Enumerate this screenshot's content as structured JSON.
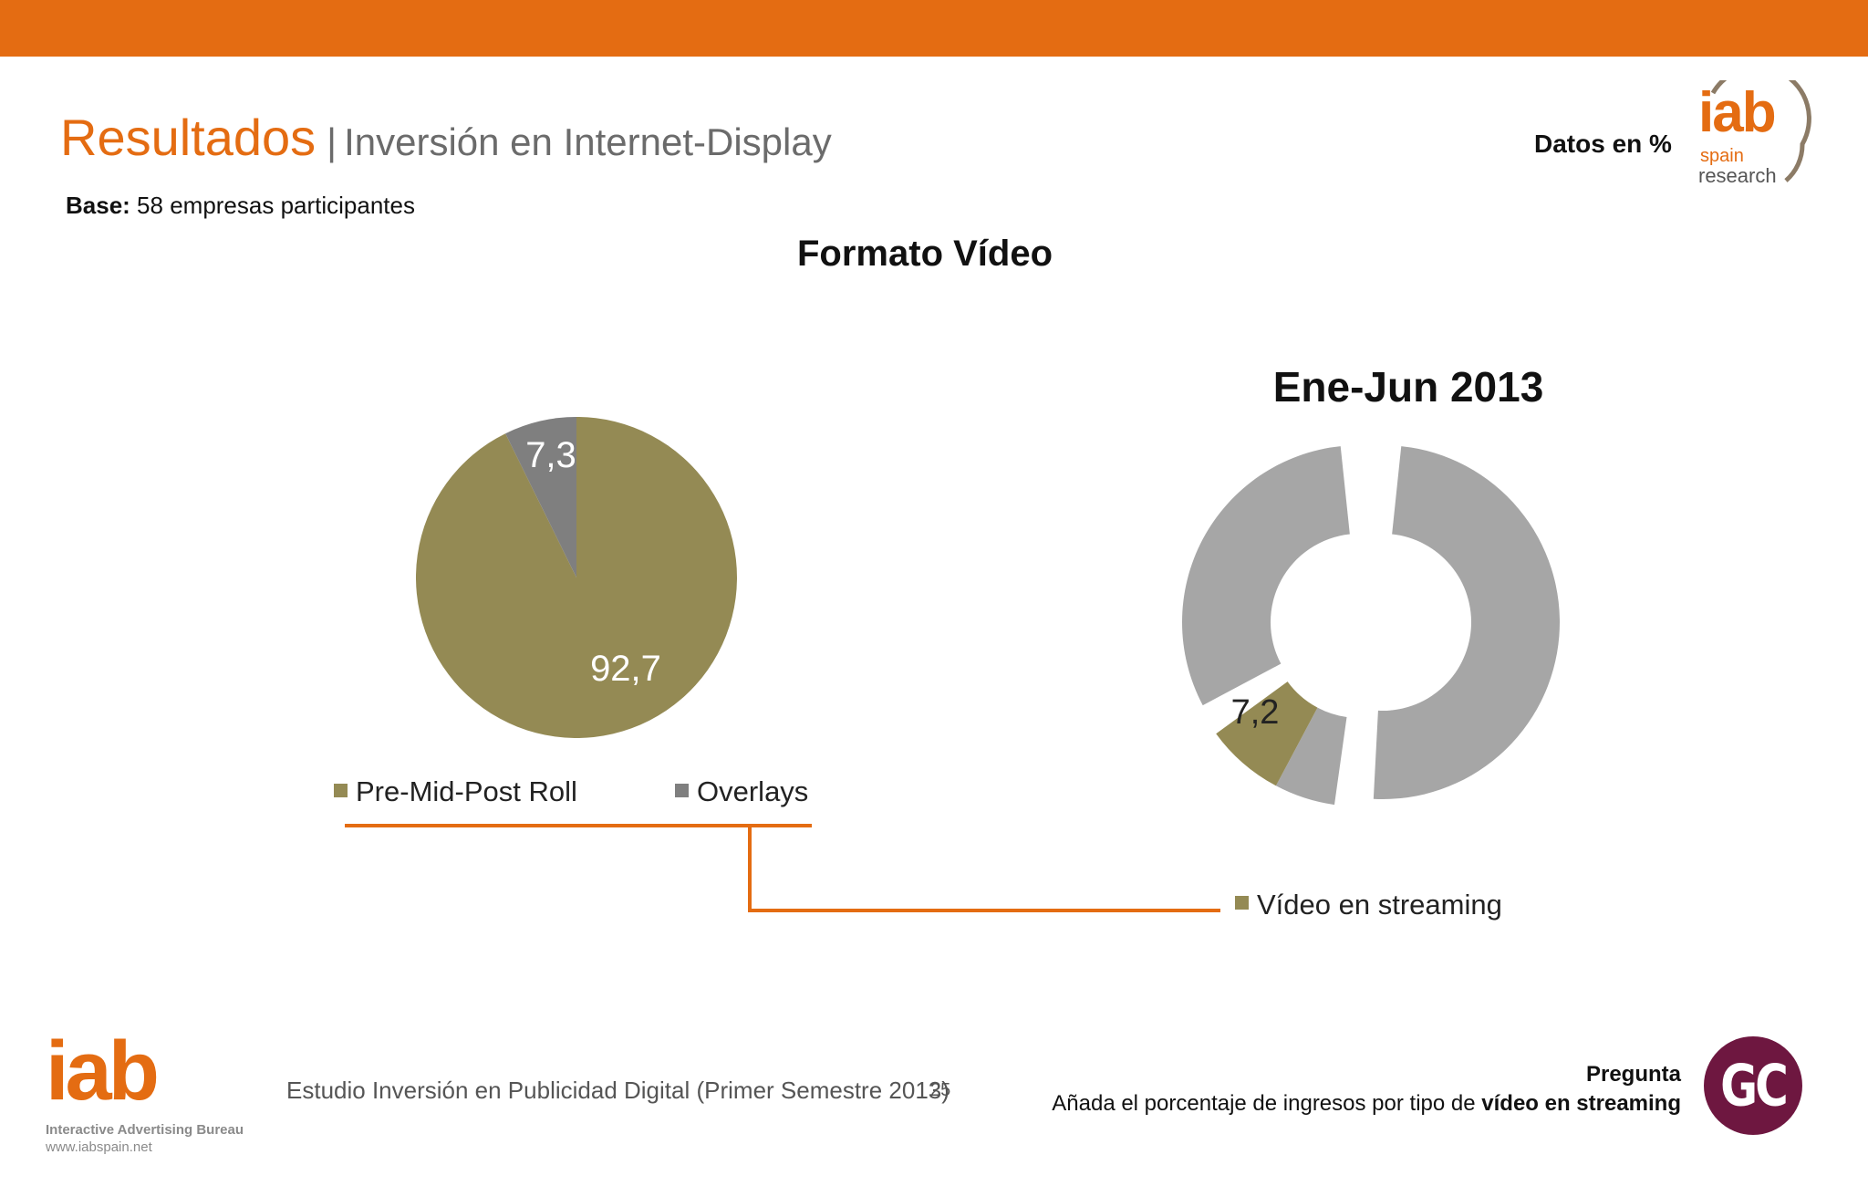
{
  "header": {
    "title_main": "Resultados",
    "title_separator": "|",
    "title_sub": "Inversión en Internet-Display",
    "base_label": "Base:",
    "base_text": " 58 empresas participantes",
    "units_note": "Datos en %"
  },
  "logo_top": {
    "iab": "iab",
    "spain": "spain",
    "research": "research"
  },
  "heading": "Formato Vídeo",
  "chart_data": [
    {
      "type": "pie",
      "title": "",
      "categories": [
        "Pre-Mid-Post Roll",
        "Overlays"
      ],
      "values": [
        92.7,
        7.3
      ],
      "labels": [
        "92,7",
        "7,3"
      ],
      "colors": [
        "#948a54",
        "#7f7f7f"
      ],
      "legend_position": "bottom"
    },
    {
      "type": "pie",
      "subtype": "donut",
      "title": "Ene-Jun 2013",
      "categories": [
        "Vídeo en streaming"
      ],
      "values": [
        7.2
      ],
      "labels": [
        "7,2"
      ],
      "colors": [
        "#948a54",
        "#a6a6a6"
      ],
      "legend_position": "bottom"
    }
  ],
  "footer": {
    "iab": "iab",
    "iab_name": "Interactive Advertising Bureau",
    "iab_web": "www.iabspain.net",
    "study": "Estudio Inversión en Publicidad Digital (Primer Semestre 2013)",
    "page": "25",
    "pregunta_label": "Pregunta",
    "pregunta_text": "Añada el porcentaje de ingresos por tipo de ",
    "pregunta_bold": "vídeo en streaming",
    "badge": "GC"
  },
  "colors": {
    "accent": "#e46c12",
    "olive": "#948a54",
    "gray": "#7f7f7f",
    "light_gray": "#a6a6a6",
    "badge": "#6e1740"
  }
}
